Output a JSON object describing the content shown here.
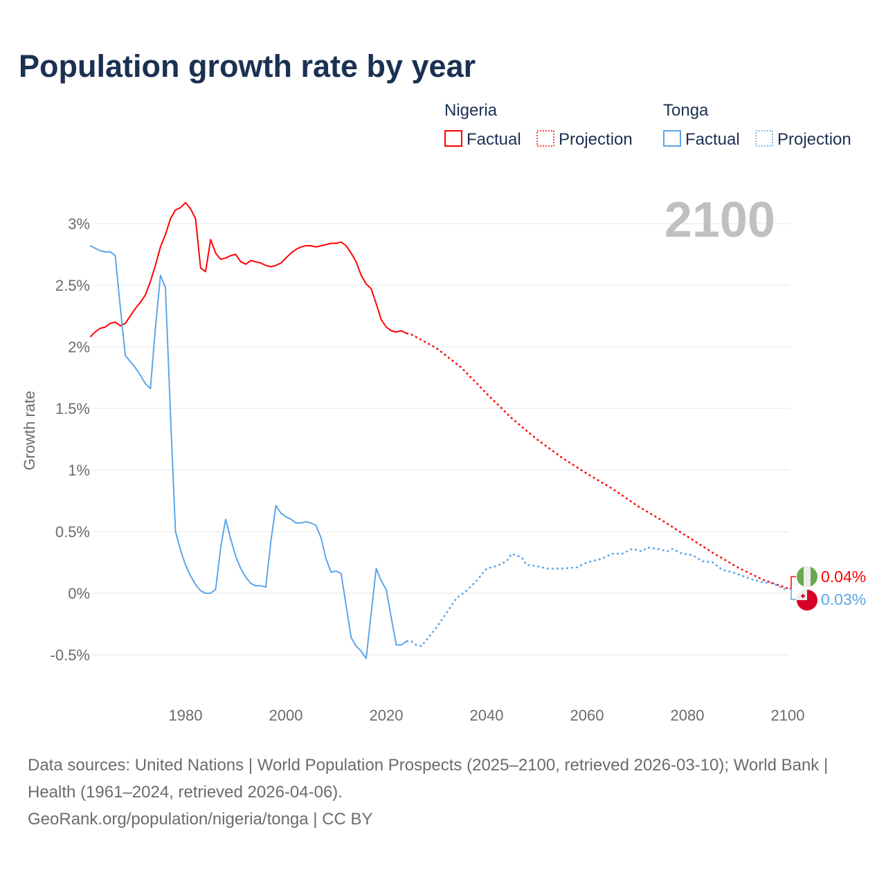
{
  "chart_data": {
    "type": "line",
    "title": "Population growth rate by year",
    "ylabel": "Growth rate",
    "xlabel": "",
    "xlim": [
      1961,
      2100
    ],
    "ylim": [
      -0.7,
      3.4
    ],
    "x_ticks": [
      {
        "v": 1980,
        "label": "1980"
      },
      {
        "v": 2000,
        "label": "2000"
      },
      {
        "v": 2020,
        "label": "2020"
      },
      {
        "v": 2040,
        "label": "2040"
      },
      {
        "v": 2060,
        "label": "2060"
      },
      {
        "v": 2080,
        "label": "2080"
      },
      {
        "v": 2100,
        "label": "2100"
      }
    ],
    "y_ticks": [
      {
        "v": 3,
        "label": "3%"
      },
      {
        "v": 2.5,
        "label": "2.5%"
      },
      {
        "v": 2,
        "label": "2%"
      },
      {
        "v": 1.5,
        "label": "1.5%"
      },
      {
        "v": 1,
        "label": "1%"
      },
      {
        "v": 0.5,
        "label": "0.5%"
      },
      {
        "v": 0,
        "label": "0%"
      },
      {
        "v": -0.5,
        "label": "-0.5%"
      }
    ],
    "grid": true,
    "year_label": "2100",
    "legend": {
      "placement": "top-right",
      "groups": [
        {
          "country": "Nigeria",
          "factual": "Factual",
          "projection": "Projection",
          "color": "#ff0000"
        },
        {
          "country": "Tonga",
          "factual": "Factual",
          "projection": "Projection",
          "color": "#5aa5ea"
        }
      ]
    },
    "series": [
      {
        "name": "Nigeria",
        "color": "#ff0000",
        "end_label": "0.04%",
        "factual": {
          "x": [
            1961,
            1962,
            1963,
            1964,
            1965,
            1966,
            1967,
            1968,
            1969,
            1970,
            1971,
            1972,
            1973,
            1974,
            1975,
            1976,
            1977,
            1978,
            1979,
            1980,
            1981,
            1982,
            1983,
            1984,
            1985,
            1986,
            1987,
            1988,
            1989,
            1990,
            1991,
            1992,
            1993,
            1994,
            1995,
            1996,
            1997,
            1998,
            1999,
            2000,
            2001,
            2002,
            2003,
            2004,
            2005,
            2006,
            2007,
            2008,
            2009,
            2010,
            2011,
            2012,
            2013,
            2014,
            2015,
            2016,
            2017,
            2018,
            2019,
            2020,
            2021,
            2022,
            2023,
            2024
          ],
          "y": [
            2.08,
            2.12,
            2.15,
            2.16,
            2.19,
            2.2,
            2.17,
            2.19,
            2.25,
            2.31,
            2.36,
            2.42,
            2.53,
            2.66,
            2.81,
            2.91,
            3.04,
            3.11,
            3.13,
            3.17,
            3.12,
            3.04,
            2.64,
            2.61,
            2.87,
            2.76,
            2.71,
            2.72,
            2.74,
            2.75,
            2.69,
            2.67,
            2.7,
            2.69,
            2.68,
            2.66,
            2.65,
            2.66,
            2.68,
            2.72,
            2.76,
            2.79,
            2.81,
            2.82,
            2.82,
            2.81,
            2.82,
            2.83,
            2.84,
            2.84,
            2.85,
            2.82,
            2.76,
            2.69,
            2.58,
            2.51,
            2.47,
            2.35,
            2.22,
            2.16,
            2.13,
            2.12,
            2.13,
            2.11
          ]
        },
        "projection": {
          "x": [
            2024,
            2025,
            2030,
            2035,
            2040,
            2045,
            2050,
            2055,
            2060,
            2065,
            2070,
            2075,
            2080,
            2085,
            2090,
            2095,
            2100
          ],
          "y": [
            2.11,
            2.1,
            1.99,
            1.83,
            1.62,
            1.42,
            1.25,
            1.1,
            0.97,
            0.85,
            0.71,
            0.59,
            0.46,
            0.33,
            0.21,
            0.11,
            0.04
          ]
        }
      },
      {
        "name": "Tonga",
        "color": "#5aa5ea",
        "end_label": "0.03%",
        "factual": {
          "x": [
            1961,
            1962,
            1963,
            1964,
            1965,
            1966,
            1967,
            1968,
            1969,
            1970,
            1971,
            1972,
            1973,
            1974,
            1975,
            1976,
            1977,
            1978,
            1979,
            1980,
            1981,
            1982,
            1983,
            1984,
            1985,
            1986,
            1987,
            1988,
            1989,
            1990,
            1991,
            1992,
            1993,
            1994,
            1995,
            1996,
            1997,
            1998,
            1999,
            2000,
            2001,
            2002,
            2003,
            2004,
            2005,
            2006,
            2007,
            2008,
            2009,
            2010,
            2011,
            2012,
            2013,
            2014,
            2015,
            2016,
            2017,
            2018,
            2019,
            2020,
            2021,
            2022,
            2023,
            2024
          ],
          "y": [
            2.82,
            2.8,
            2.78,
            2.77,
            2.77,
            2.74,
            2.32,
            1.93,
            1.88,
            1.83,
            1.77,
            1.7,
            1.66,
            2.15,
            2.58,
            2.48,
            1.45,
            0.5,
            0.35,
            0.23,
            0.14,
            0.07,
            0.02,
            0.0,
            0.0,
            0.03,
            0.37,
            0.6,
            0.44,
            0.3,
            0.2,
            0.13,
            0.08,
            0.06,
            0.06,
            0.05,
            0.42,
            0.71,
            0.65,
            0.62,
            0.6,
            0.57,
            0.57,
            0.58,
            0.57,
            0.55,
            0.45,
            0.28,
            0.17,
            0.18,
            0.16,
            -0.1,
            -0.36,
            -0.43,
            -0.47,
            -0.53,
            -0.16,
            0.2,
            0.1,
            0.03,
            -0.2,
            -0.42,
            -0.42,
            -0.39
          ]
        },
        "projection": {
          "x": [
            2024,
            2025,
            2026,
            2027,
            2028,
            2029,
            2030,
            2032,
            2034,
            2036,
            2038,
            2040,
            2042,
            2044,
            2045,
            2047,
            2048,
            2050,
            2052,
            2055,
            2058,
            2060,
            2063,
            2065,
            2067,
            2069,
            2071,
            2072,
            2074,
            2076,
            2077,
            2079,
            2081,
            2083,
            2085,
            2087,
            2089,
            2091,
            2093,
            2095,
            2097,
            2099,
            2100
          ],
          "y": [
            -0.39,
            -0.39,
            -0.42,
            -0.43,
            -0.38,
            -0.33,
            -0.28,
            -0.16,
            -0.04,
            0.02,
            0.1,
            0.2,
            0.22,
            0.26,
            0.32,
            0.29,
            0.23,
            0.22,
            0.2,
            0.2,
            0.21,
            0.25,
            0.28,
            0.32,
            0.32,
            0.36,
            0.34,
            0.37,
            0.36,
            0.34,
            0.36,
            0.32,
            0.31,
            0.26,
            0.25,
            0.19,
            0.17,
            0.14,
            0.11,
            0.09,
            0.08,
            0.04,
            0.03
          ]
        }
      }
    ]
  },
  "footer": {
    "sources": "Data sources: United Nations | World Population Prospects (2025–2100, retrieved 2026-03-10); World Bank | Health (1961–2024, retrieved 2026-04-06).",
    "link": "GeoRank.org/population/nigeria/tonga | CC BY"
  }
}
